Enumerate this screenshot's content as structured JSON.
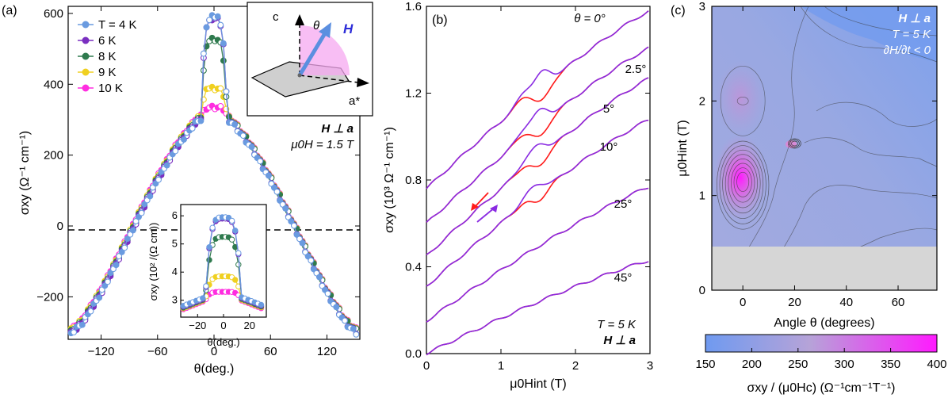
{
  "chart_data": [
    {
      "panel": "(a)",
      "type": "scatter",
      "xlabel": "θ(deg.)",
      "ylabel": "σxy (Ω⁻¹ cm⁻¹)",
      "xlim": [
        -155,
        155
      ],
      "ylim": [
        -320,
        620
      ],
      "xticks": [
        -120,
        -60,
        0,
        60,
        120
      ],
      "xtick_labels": [
        "−120",
        "−60",
        "0",
        "60",
        "120"
      ],
      "yticks": [
        -200,
        0,
        200,
        400,
        600
      ],
      "ytick_labels": [
        "−200",
        "0",
        "200",
        "400",
        "600"
      ],
      "annotation_line1": "H ⊥ a",
      "annotation_line2": "μ0H = 1.5 T",
      "series": [
        {
          "name": "T = 4 K",
          "color": "#6a9be0",
          "peak": 595
        },
        {
          "name": "6 K",
          "color": "#7a2fc0",
          "peak": 590
        },
        {
          "name": "8 K",
          "color": "#2f7a4e",
          "peak": 525
        },
        {
          "name": "9 K",
          "color": "#f0d020",
          "peak": 385
        },
        {
          "name": "10 K",
          "color": "#ff2de0",
          "peak": 330
        }
      ],
      "background_curve": {
        "theta": [
          -155,
          -140,
          -120,
          -100,
          -80,
          -60,
          -40,
          -20,
          0,
          20,
          40,
          60,
          80,
          100,
          120,
          140,
          155
        ],
        "sigma": [
          -305,
          -270,
          -185,
          -80,
          30,
          135,
          225,
          295,
          330,
          295,
          225,
          135,
          30,
          -80,
          -185,
          -270,
          -305
        ]
      },
      "inset": {
        "xlabel": "θ(deg.)",
        "ylabel": "σxy (10² /(Ω cm))",
        "xlim": [
          -33,
          33
        ],
        "ylim": [
          2.4,
          6.4
        ],
        "xticks": [
          -20,
          0,
          20
        ],
        "xtick_labels": [
          "−20",
          "0",
          "20"
        ],
        "yticks": [
          3,
          4,
          5,
          6
        ],
        "ytick_labels": [
          "3",
          "4",
          "5",
          "6"
        ]
      }
    },
    {
      "panel": "(b)",
      "type": "line",
      "xlabel": "μ0Hint (T)",
      "ylabel": "σxy (10³ Ω⁻¹ cm⁻¹)",
      "xlim": [
        0,
        3
      ],
      "ylim": [
        0,
        1.6
      ],
      "xticks": [
        0,
        1,
        2,
        3
      ],
      "xtick_labels": [
        "0",
        "1",
        "2",
        "3"
      ],
      "yticks": [
        0,
        0.4,
        0.8,
        1.2,
        1.6
      ],
      "ytick_labels": [
        "0.0",
        "0.4",
        "0.8",
        "1.2",
        "1.6"
      ],
      "annotation_line1": "T = 5 K",
      "annotation_line2": "H ⊥ a",
      "legend_sweep_down_color": "#ff1a1a",
      "legend_sweep_up_color": "#8a2be2",
      "curves": [
        {
          "label": "θ = 0°",
          "start": 0.76,
          "end": 1.58,
          "dip": true,
          "dip_depth": 0.12
        },
        {
          "label": "2.5°",
          "start": 0.6,
          "end": 1.41,
          "dip": true,
          "dip_depth": 0.11
        },
        {
          "label": "5°",
          "start": 0.45,
          "end": 1.27,
          "dip": true,
          "dip_depth": 0.09
        },
        {
          "label": "10°",
          "start": 0.31,
          "end": 1.08,
          "dip": true,
          "dip_depth": 0.07
        },
        {
          "label": "25°",
          "start": 0.15,
          "end": 0.77,
          "dip": false,
          "dip_depth": 0
        },
        {
          "label": "45°",
          "start": 0.0,
          "end": 0.43,
          "dip": false,
          "dip_depth": 0
        }
      ]
    },
    {
      "panel": "(c)",
      "type": "heatmap",
      "xlabel": "Angle θ (degrees)",
      "ylabel": "μ0Hint (T)",
      "xlim": [
        -12,
        75
      ],
      "ylim": [
        0,
        3
      ],
      "xticks": [
        0,
        20,
        40,
        60
      ],
      "xtick_labels": [
        "0",
        "20",
        "40",
        "60"
      ],
      "yticks": [
        0,
        1,
        2,
        3
      ],
      "ytick_labels": [
        "0",
        "1",
        "2",
        "3"
      ],
      "annotation_line1": "H ⊥ a",
      "annotation_line2": "T = 5 K",
      "annotation_line3": "∂H/∂t < 0",
      "masked_below_field": 0.45,
      "colorbar": {
        "label": "σxy / (μ0Hc) (Ω⁻¹cm⁻¹T⁻¹)",
        "range": [
          150,
          400
        ],
        "ticks": [
          150,
          200,
          250,
          300,
          350,
          400
        ],
        "tick_labels": [
          "150",
          "200",
          "250",
          "300",
          "350",
          "400"
        ],
        "color_low": "#6f9af0",
        "color_high": "#ff1aff"
      },
      "features": [
        {
          "theta": 0,
          "field": 1.15,
          "value": 400,
          "label": "peak near θ=0, 1.15 T"
        },
        {
          "theta": 0,
          "field": 2.0,
          "value": 270,
          "label": "secondary maximum near 2 T"
        },
        {
          "theta": 20,
          "field": 1.55,
          "value": 290,
          "label": "small feature near 20°"
        }
      ]
    }
  ],
  "inset_diagram": {
    "axis_c": "c",
    "axis_a": "a*",
    "angle_label": "θ",
    "field_label": "H"
  },
  "panel_labels": [
    "(a)",
    "(b)",
    "(c)"
  ]
}
